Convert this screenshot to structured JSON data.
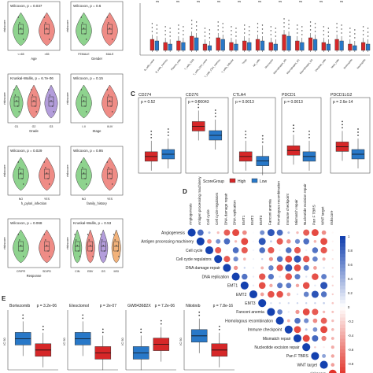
{
  "panel_A": {
    "tests": [
      {
        "stat": "Wilcoxon, p = 0.037",
        "xlabel": "Age",
        "ticks": [
          "<=65",
          ">65"
        ]
      },
      {
        "stat": "Wilcoxon, p = 0.6",
        "xlabel": "Gender",
        "ticks": [
          "FEMALE",
          "MALE"
        ]
      },
      {
        "stat": "Kruskal-Wallis, p = 6.7e-06",
        "xlabel": "Grade",
        "ticks": [
          "G1",
          "G2",
          "G3"
        ]
      },
      {
        "stat": "Wilcoxon, p = 0.15",
        "xlabel": "Stage",
        "ticks": [
          "I-II",
          "III-IV"
        ]
      },
      {
        "stat": "Wilcoxon, p = 0.029",
        "xlabel": "h_pylori_infection",
        "ticks": [
          "NO",
          "YES"
        ]
      },
      {
        "stat": "Wilcoxon, p = 0.95",
        "xlabel": "family_history",
        "ticks": [
          "NO",
          "YES"
        ]
      },
      {
        "stat": "Wilcoxon, p = 0.068",
        "xlabel": "Response",
        "ticks": [
          "CR/PR",
          "SD/PD"
        ]
      },
      {
        "stat": "Kruskal-Wallis, p = 0.53",
        "xlabel": "",
        "ticks": [
          "CIN",
          "EBV",
          "GS",
          "MSI"
        ]
      }
    ],
    "ylabel": "riskscore",
    "colors": {
      "green": "#8ed38e",
      "red": "#ef8c86",
      "purple": "#b39ddb",
      "blue": "#8ab4e8",
      "orange": "#f2b27a"
    }
  },
  "panel_B": {
    "sig_labels": [
      "ns",
      "ns",
      "ns",
      "ns",
      "ns",
      "ns",
      "ns",
      "ns",
      "ns",
      "ns"
    ],
    "cell_types": [
      "B_cells_naive",
      "B_cells_memory",
      "Plasma_cells",
      "T_cells_CD8",
      "T_cells_CD4_naive",
      "T_cells_CD4_memory",
      "T_cells_follicular",
      "Tregs",
      "NK_cells",
      "Monocytes",
      "Macrophages_M0",
      "Macrophages_M1",
      "Macrophages_M2",
      "Dendritic_cells",
      "Mast_cells",
      "Eosinophils",
      "Neutrophils"
    ]
  },
  "panel_C": {
    "letter": "C",
    "legend_title": "ScoreGroup",
    "legend": [
      "High",
      "Low"
    ],
    "genes": [
      {
        "name": "CD274",
        "p": "p = 0.52"
      },
      {
        "name": "CD276",
        "p": "p = 0.00043"
      },
      {
        "name": "CTLA4",
        "p": "p = 0.0013"
      },
      {
        "name": "PDCD1",
        "p": "p = 0.0013"
      },
      {
        "name": "PDCD1LG2",
        "p": "p = 2.6e-14"
      }
    ]
  },
  "panel_D": {
    "letter": "D",
    "labels": [
      "Angiogenesis",
      "Antigen processing machinery",
      "Cell cycle",
      "Cell cycle regulators",
      "DNA damage repair",
      "DNA replication",
      "EMT1",
      "EMT2",
      "EMT3",
      "Fanconi anemia",
      "Homologous recombination",
      "Immune checkpoint",
      "Mismatch repair",
      "Nucleotide excision repair",
      "Pan F TBRS",
      "WNT target",
      "riskscore"
    ],
    "scale_ticks": [
      "1",
      "0.8",
      "0.6",
      "0.4",
      "0.2",
      "0",
      "-0.2",
      "-0.4",
      "-0.6",
      "-0.8",
      "-1"
    ]
  },
  "panel_E": {
    "letter": "E",
    "drugs": [
      {
        "name": "Bortezomib",
        "p": "p = 3.2e-06"
      },
      {
        "name": "Elesclomol",
        "p": "p = 2e-07"
      },
      {
        "name": "GW843682X",
        "p": "p = 7.2e-06"
      },
      {
        "name": "Nilotinib",
        "p": "p = 7.8e-16"
      }
    ],
    "ylabel": "IC 50"
  }
}
